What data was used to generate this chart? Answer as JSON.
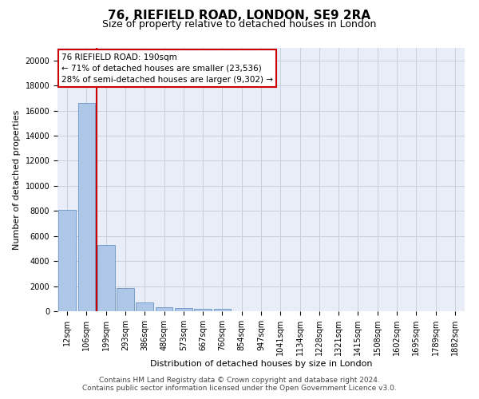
{
  "title1": "76, RIEFIELD ROAD, LONDON, SE9 2RA",
  "title2": "Size of property relative to detached houses in London",
  "xlabel": "Distribution of detached houses by size in London",
  "ylabel": "Number of detached properties",
  "bar_color": "#aec6e8",
  "bar_edge_color": "#5588bb",
  "vline_color": "#cc0000",
  "vline_x_index": 1.5,
  "annotation_title": "76 RIEFIELD ROAD: 190sqm",
  "annotation_line1": "← 71% of detached houses are smaller (23,536)",
  "annotation_line2": "28% of semi-detached houses are larger (9,302) →",
  "annotation_box_color": "#cc0000",
  "categories": [
    "12sqm",
    "106sqm",
    "199sqm",
    "293sqm",
    "386sqm",
    "480sqm",
    "573sqm",
    "667sqm",
    "760sqm",
    "854sqm",
    "947sqm",
    "1041sqm",
    "1134sqm",
    "1228sqm",
    "1321sqm",
    "1415sqm",
    "1508sqm",
    "1602sqm",
    "1695sqm",
    "1789sqm",
    "1882sqm"
  ],
  "values": [
    8100,
    16600,
    5300,
    1850,
    700,
    350,
    270,
    200,
    160,
    0,
    0,
    0,
    0,
    0,
    0,
    0,
    0,
    0,
    0,
    0,
    0
  ],
  "ylim": [
    0,
    21000
  ],
  "yticks": [
    0,
    2000,
    4000,
    6000,
    8000,
    10000,
    12000,
    14000,
    16000,
    18000,
    20000
  ],
  "grid_color": "#c8d0e0",
  "bg_color": "#e8edf8",
  "footer1": "Contains HM Land Registry data © Crown copyright and database right 2024.",
  "footer2": "Contains public sector information licensed under the Open Government Licence v3.0.",
  "title1_fontsize": 11,
  "title2_fontsize": 9,
  "axis_label_fontsize": 8,
  "tick_fontsize": 7,
  "footer_fontsize": 6.5,
  "annotation_fontsize": 7.5
}
